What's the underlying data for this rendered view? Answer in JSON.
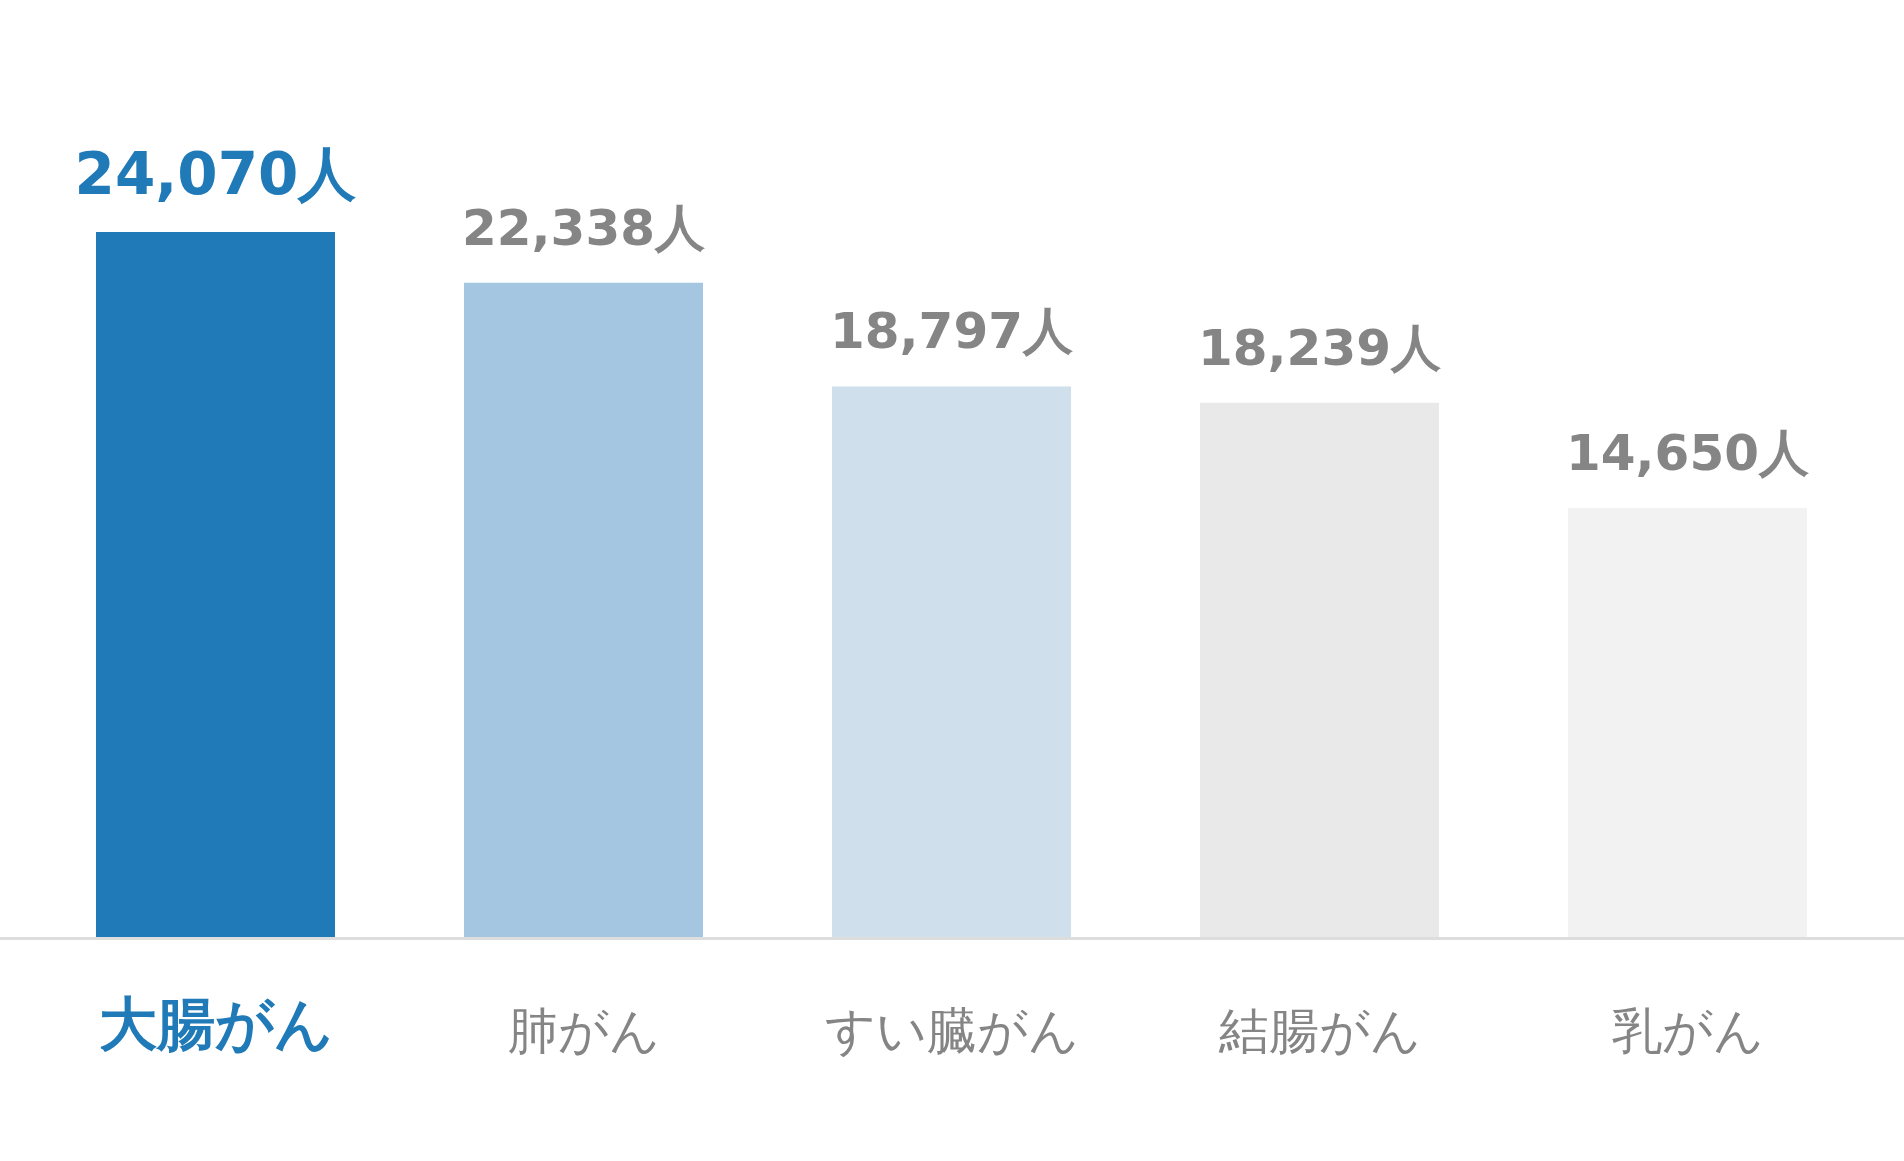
{
  "chart_data": {
    "type": "bar",
    "categories": [
      "大腸がん",
      "肺がん",
      "すい臓がん",
      "結腸がん",
      "乳がん"
    ],
    "values": [
      24070,
      22338,
      18797,
      18239,
      14650
    ],
    "colors": [
      "#1f7ab7",
      "#a4c6e0",
      "#cfe0ec",
      "#e9e9e9",
      "#f2f2f2"
    ],
    "value_labels": [
      "24,070人",
      "22,338人",
      "18,797人",
      "18,239人",
      "14,650人"
    ]
  }
}
